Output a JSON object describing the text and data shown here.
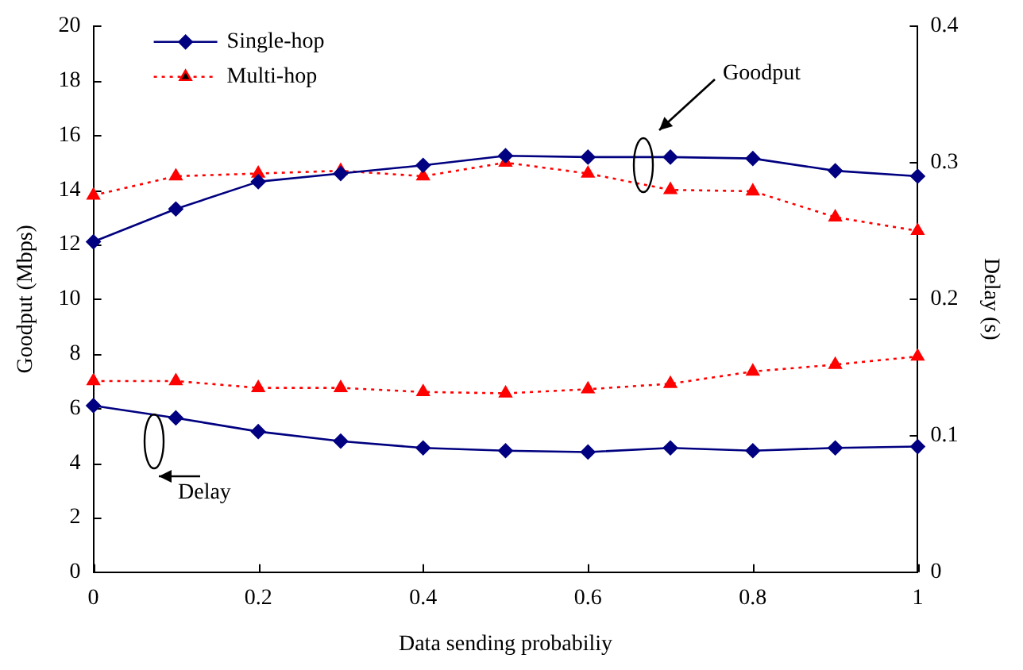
{
  "chart_data": {
    "type": "line",
    "xlabel": "Data sending probabiliy",
    "ylabel": "Goodput (Mbps)",
    "y2label": "Delay (s)",
    "x": [
      0,
      0.1,
      0.2,
      0.3,
      0.4,
      0.5,
      0.6,
      0.7,
      0.8,
      0.9,
      1
    ],
    "xlim": [
      0,
      1
    ],
    "xticks": [
      0,
      0.2,
      0.4,
      0.6,
      0.8,
      1
    ],
    "ylim": [
      0,
      20
    ],
    "yticks": [
      0,
      2,
      4,
      6,
      8,
      10,
      12,
      14,
      16,
      18,
      20
    ],
    "y2lim": [
      0,
      0.4
    ],
    "y2ticks": [
      0,
      0.1,
      0.2,
      0.3,
      0.4
    ],
    "grid": false,
    "legend": "top left",
    "series": [
      {
        "name": "Single-hop",
        "color": "#000080",
        "marker": "diamond",
        "line_style": "solid",
        "values": [
          12.1,
          13.3,
          14.3,
          14.6,
          14.9,
          15.25,
          15.2,
          15.2,
          15.15,
          14.7,
          14.5
        ]
      },
      {
        "name": "Multi-hop",
        "color": "#ff0000",
        "marker": "triangle",
        "line_style": "dotted",
        "values": [
          13.8,
          14.5,
          14.6,
          14.7,
          14.5,
          15.0,
          14.6,
          14.0,
          13.95,
          13.0,
          12.5
        ]
      },
      {
        "color": "#000080",
        "marker": "diamond",
        "line_style": "solid",
        "axis": "y2",
        "values": [
          0.122,
          0.113,
          0.103,
          0.096,
          0.091,
          0.089,
          0.088,
          0.091,
          0.089,
          0.091,
          0.092
        ]
      },
      {
        "color": "#ff0000",
        "marker": "triangle",
        "line_style": "dotted",
        "axis": "y2",
        "values": [
          0.14,
          0.14,
          0.135,
          0.135,
          0.132,
          0.131,
          0.134,
          0.138,
          0.147,
          0.152,
          0.158
        ]
      }
    ],
    "annotations": [
      "Goodput",
      "Delay"
    ]
  }
}
